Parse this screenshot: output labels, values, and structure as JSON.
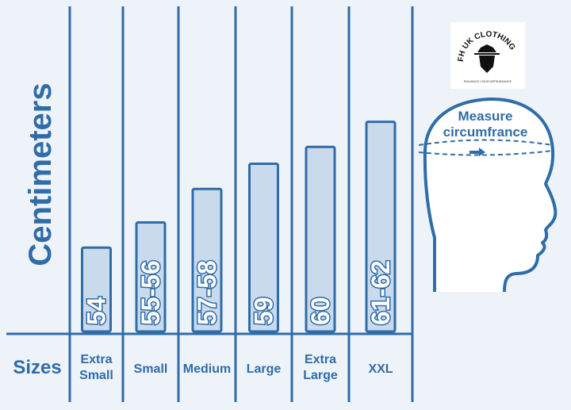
{
  "chart_data": {
    "type": "bar",
    "ylabel": "Centimeters",
    "xlabel": "Sizes",
    "categories": [
      "Extra Small",
      "Small",
      "Medium",
      "Large",
      "Extra Large",
      "XXL"
    ],
    "category_lines": [
      [
        "Extra",
        "Small"
      ],
      [
        "Small"
      ],
      [
        "Medium"
      ],
      [
        "Large"
      ],
      [
        "Extra",
        "Large"
      ],
      [
        "XXL"
      ]
    ],
    "bar_labels": [
      "54",
      "55-56",
      "57-58",
      "59",
      "60",
      "61-62"
    ],
    "values": [
      54,
      55.5,
      57.5,
      59,
      60,
      61.5
    ],
    "ylim": [
      49,
      62
    ],
    "grid": false,
    "colors": {
      "primary": "#2f6ca8",
      "bar_fill": "#c9daec",
      "background": "#eef3f9"
    }
  },
  "illustration": {
    "head_label_line1": "Measure",
    "head_label_line2": "circumfrance",
    "icon": "head-profile-icon"
  },
  "logo": {
    "brand": "FH UK CLOTHING",
    "tagline": "ENHANCE YOUR APPEARANCE",
    "icon": "hat-man-icon"
  }
}
